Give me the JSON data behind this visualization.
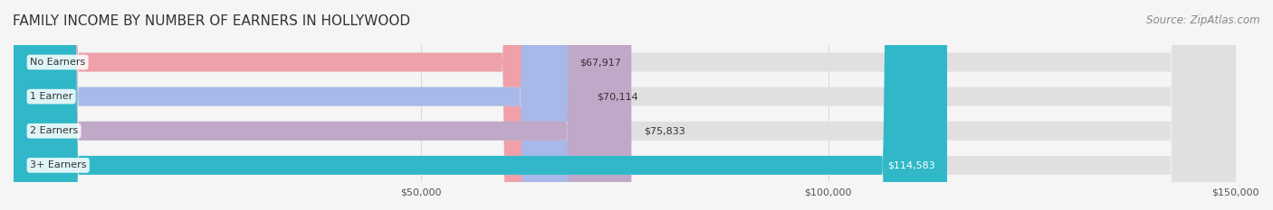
{
  "title": "FAMILY INCOME BY NUMBER OF EARNERS IN HOLLYWOOD",
  "source": "Source: ZipAtlas.com",
  "categories": [
    "No Earners",
    "1 Earner",
    "2 Earners",
    "3+ Earners"
  ],
  "values": [
    67917,
    70114,
    75833,
    114583
  ],
  "bar_colors": [
    "#f0a0a8",
    "#a8b8e8",
    "#c0a8c8",
    "#30b8c8"
  ],
  "label_colors": [
    "#555555",
    "#555555",
    "#555555",
    "#ffffff"
  ],
  "bar_background": "#e8e8e8",
  "xlim": [
    0,
    150000
  ],
  "xticks": [
    50000,
    100000,
    150000
  ],
  "xtick_labels": [
    "$50,000",
    "$100,000",
    "$150,000"
  ],
  "value_labels": [
    "$67,917",
    "$70,114",
    "$75,833",
    "$114,583"
  ],
  "title_fontsize": 11,
  "source_fontsize": 8.5,
  "bar_label_fontsize": 8,
  "value_fontsize": 8,
  "background_color": "#f5f5f5",
  "bar_bg_color": "#e0e0e0"
}
